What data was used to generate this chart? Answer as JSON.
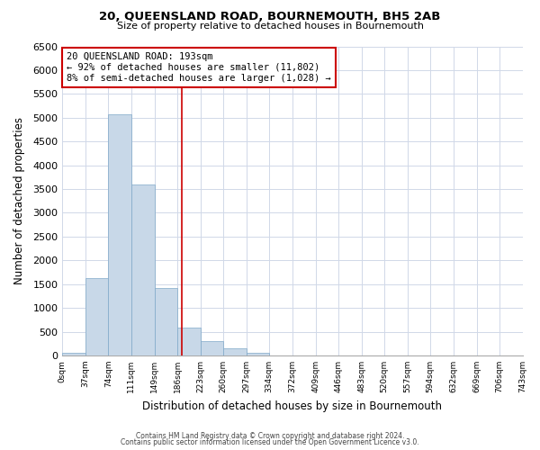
{
  "title": "20, QUEENSLAND ROAD, BOURNEMOUTH, BH5 2AB",
  "subtitle": "Size of property relative to detached houses in Bournemouth",
  "xlabel": "Distribution of detached houses by size in Bournemouth",
  "ylabel": "Number of detached properties",
  "bin_edges": [
    0,
    37,
    74,
    111,
    149,
    186,
    223,
    260,
    297,
    334,
    372,
    409,
    446,
    483,
    520,
    557,
    594,
    632,
    669,
    706,
    743
  ],
  "counts": [
    60,
    1630,
    5070,
    3590,
    1420,
    590,
    300,
    150,
    60,
    0,
    0,
    0,
    0,
    0,
    0,
    0,
    0,
    0,
    0,
    0
  ],
  "bar_color": "#c8d8e8",
  "bar_edge_color": "#7fa8c8",
  "vline_x": 193,
  "vline_color": "#cc0000",
  "annotation_title": "20 QUEENSLAND ROAD: 193sqm",
  "annotation_line1": "← 92% of detached houses are smaller (11,802)",
  "annotation_line2": "8% of semi-detached houses are larger (1,028) →",
  "box_edge_color": "#cc0000",
  "ylim": [
    0,
    6500
  ],
  "yticks": [
    0,
    500,
    1000,
    1500,
    2000,
    2500,
    3000,
    3500,
    4000,
    4500,
    5000,
    5500,
    6000,
    6500
  ],
  "footer1": "Contains HM Land Registry data © Crown copyright and database right 2024.",
  "footer2": "Contains public sector information licensed under the Open Government Licence v3.0.",
  "bg_color": "#ffffff",
  "grid_color": "#d0d8e8"
}
